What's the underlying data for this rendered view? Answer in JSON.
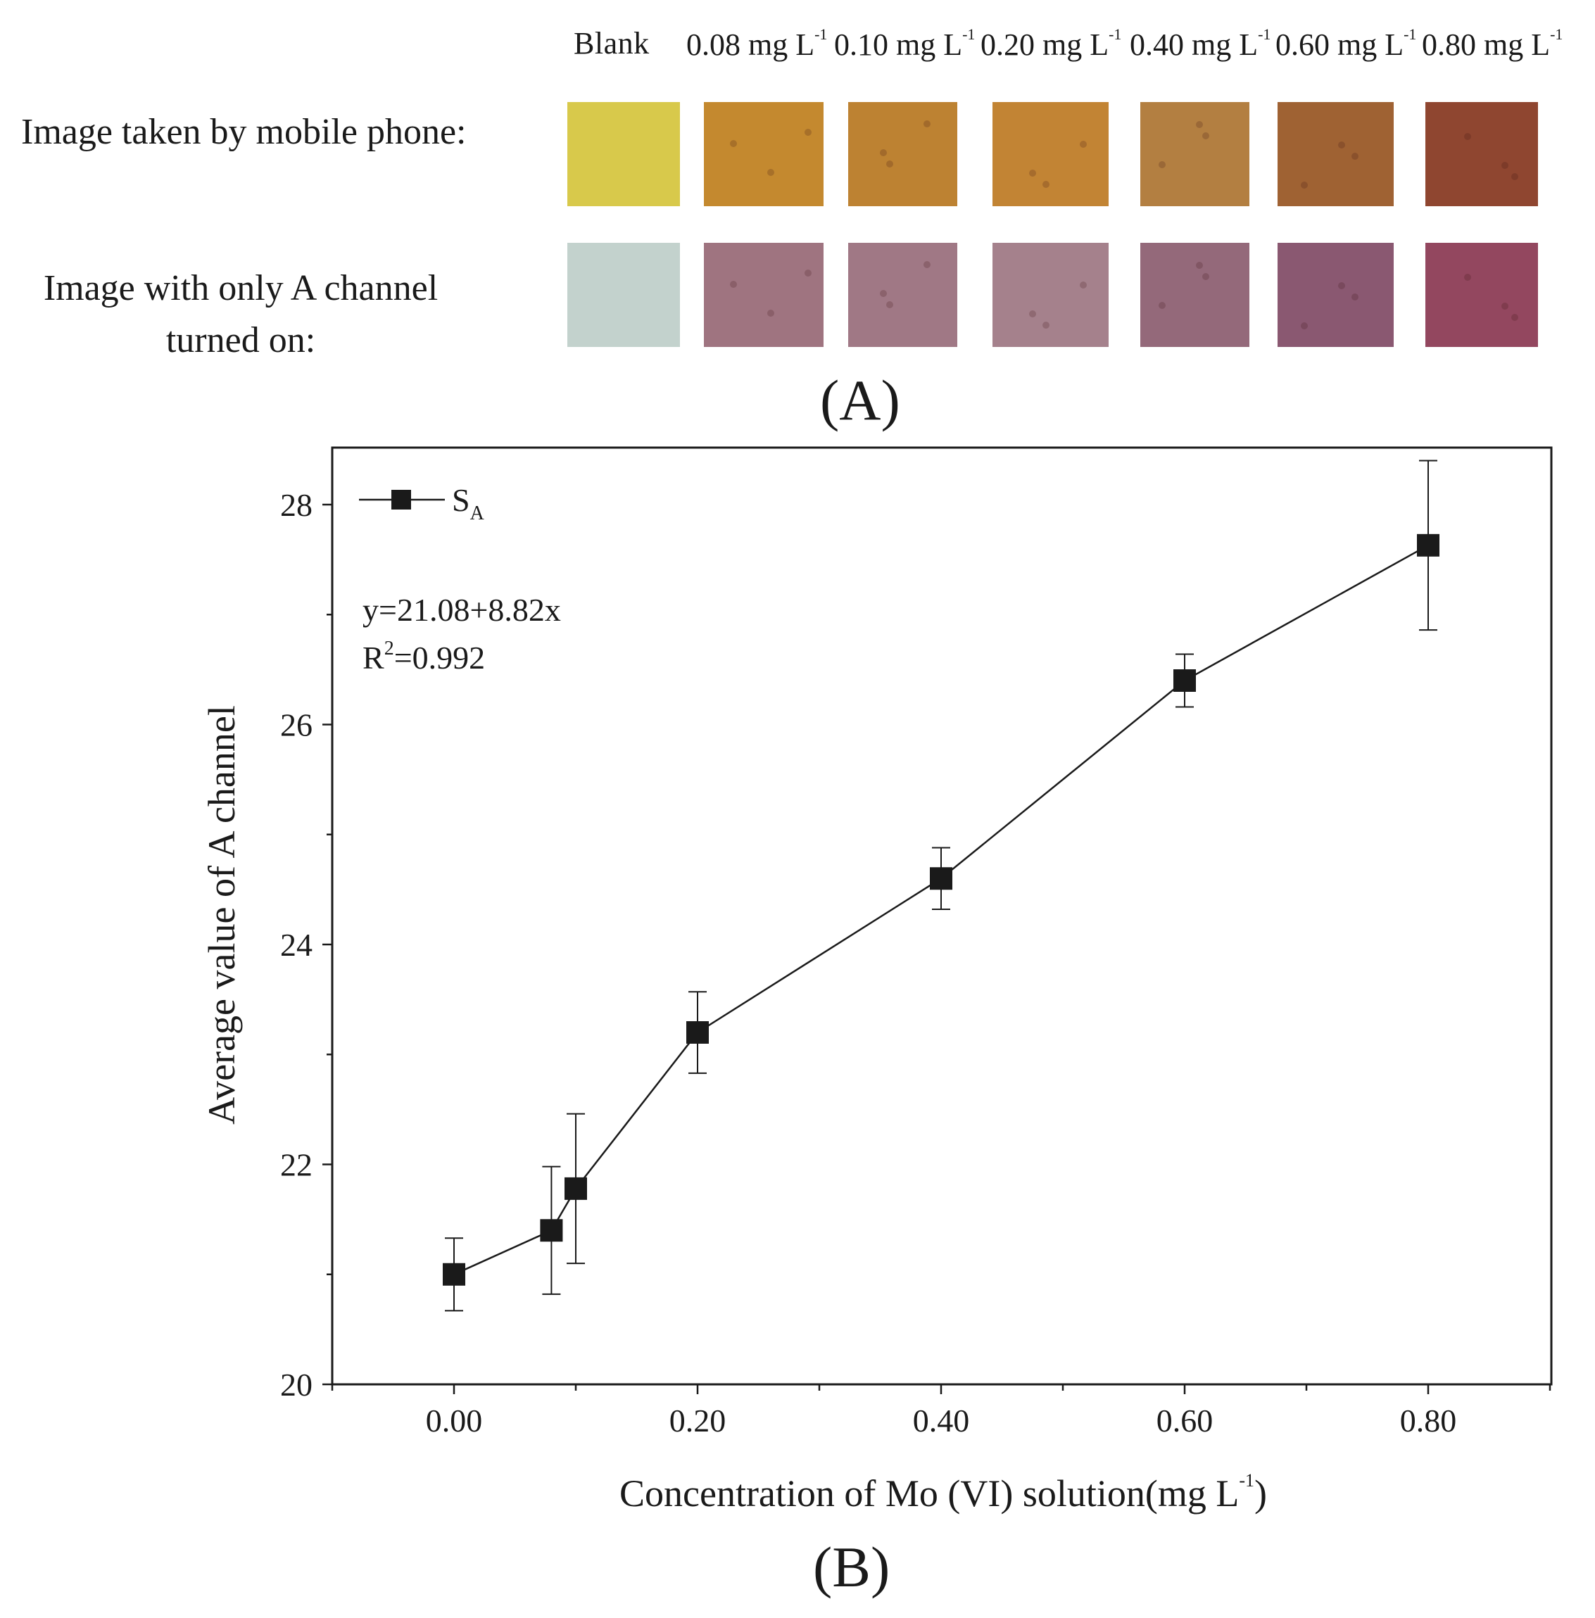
{
  "panel_a": {
    "label": "(A)",
    "row_labels": {
      "mobile": "Image taken by mobile phone:",
      "a_channel_line1": "Image with only A channel",
      "a_channel_line2": "turned on:"
    },
    "samples": [
      {
        "label": "Blank",
        "unit": "",
        "sup": "",
        "phone_color": "#d8c94b",
        "a_channel_color": "#c3d2cd"
      },
      {
        "label": "0.08",
        "unit": "mg L",
        "sup": "-1",
        "phone_color": "#c4892f",
        "a_channel_color": "#9f7480"
      },
      {
        "label": "0.10",
        "unit": "mg L",
        "sup": "-1",
        "phone_color": "#bd8232",
        "a_channel_color": "#a07885"
      },
      {
        "label": "0.20",
        "unit": "mg L",
        "sup": "-1",
        "phone_color": "#c28434",
        "a_channel_color": "#a5818c"
      },
      {
        "label": "0.40",
        "unit": "mg L",
        "sup": "-1",
        "phone_color": "#b37f41",
        "a_channel_color": "#94697a"
      },
      {
        "label": "0.60",
        "unit": "mg L",
        "sup": "-1",
        "phone_color": "#9f6233",
        "a_channel_color": "#8a5871"
      },
      {
        "label": "0.80",
        "unit": "mg L",
        "sup": "-1",
        "phone_color": "#8f4630",
        "a_channel_color": "#93475f"
      }
    ]
  },
  "panel_b": {
    "label": "(B)",
    "legend_prefix": "S",
    "legend_sub": "A",
    "equation": "y=21.08+8.82x",
    "r2_prefix": "R",
    "r2_sup": "2",
    "r2_value": "=0.992",
    "xlabel_main": "Concentration of Mo (VI) solution(mg L",
    "xlabel_sup": "-1",
    "xlabel_end": ")"
  },
  "chart_data": {
    "type": "line",
    "title": "",
    "xlabel": "Concentration of Mo (VI) solution(mg L-1)",
    "ylabel": "Average value of A channel",
    "xlim": [
      -0.1,
      0.9
    ],
    "ylim": [
      20,
      28.4
    ],
    "x_ticks": [
      0.0,
      0.2,
      0.4,
      0.6,
      0.8
    ],
    "x_tick_labels": [
      "0.00",
      "0.20",
      "0.40",
      "0.60",
      "0.80"
    ],
    "y_ticks": [
      20,
      22,
      24,
      26,
      28
    ],
    "y_tick_labels": [
      "20",
      "22",
      "24",
      "26",
      "28"
    ],
    "grid": false,
    "legend_position": "top-left",
    "series": [
      {
        "name": "SA",
        "color": "#1a1a1a",
        "marker": "square",
        "x": [
          0.0,
          0.08,
          0.1,
          0.2,
          0.4,
          0.6,
          0.8
        ],
        "y": [
          21.0,
          21.4,
          21.78,
          23.2,
          24.6,
          26.4,
          27.63
        ],
        "y_err": [
          0.33,
          0.58,
          0.68,
          0.37,
          0.28,
          0.24,
          0.77
        ]
      }
    ]
  }
}
